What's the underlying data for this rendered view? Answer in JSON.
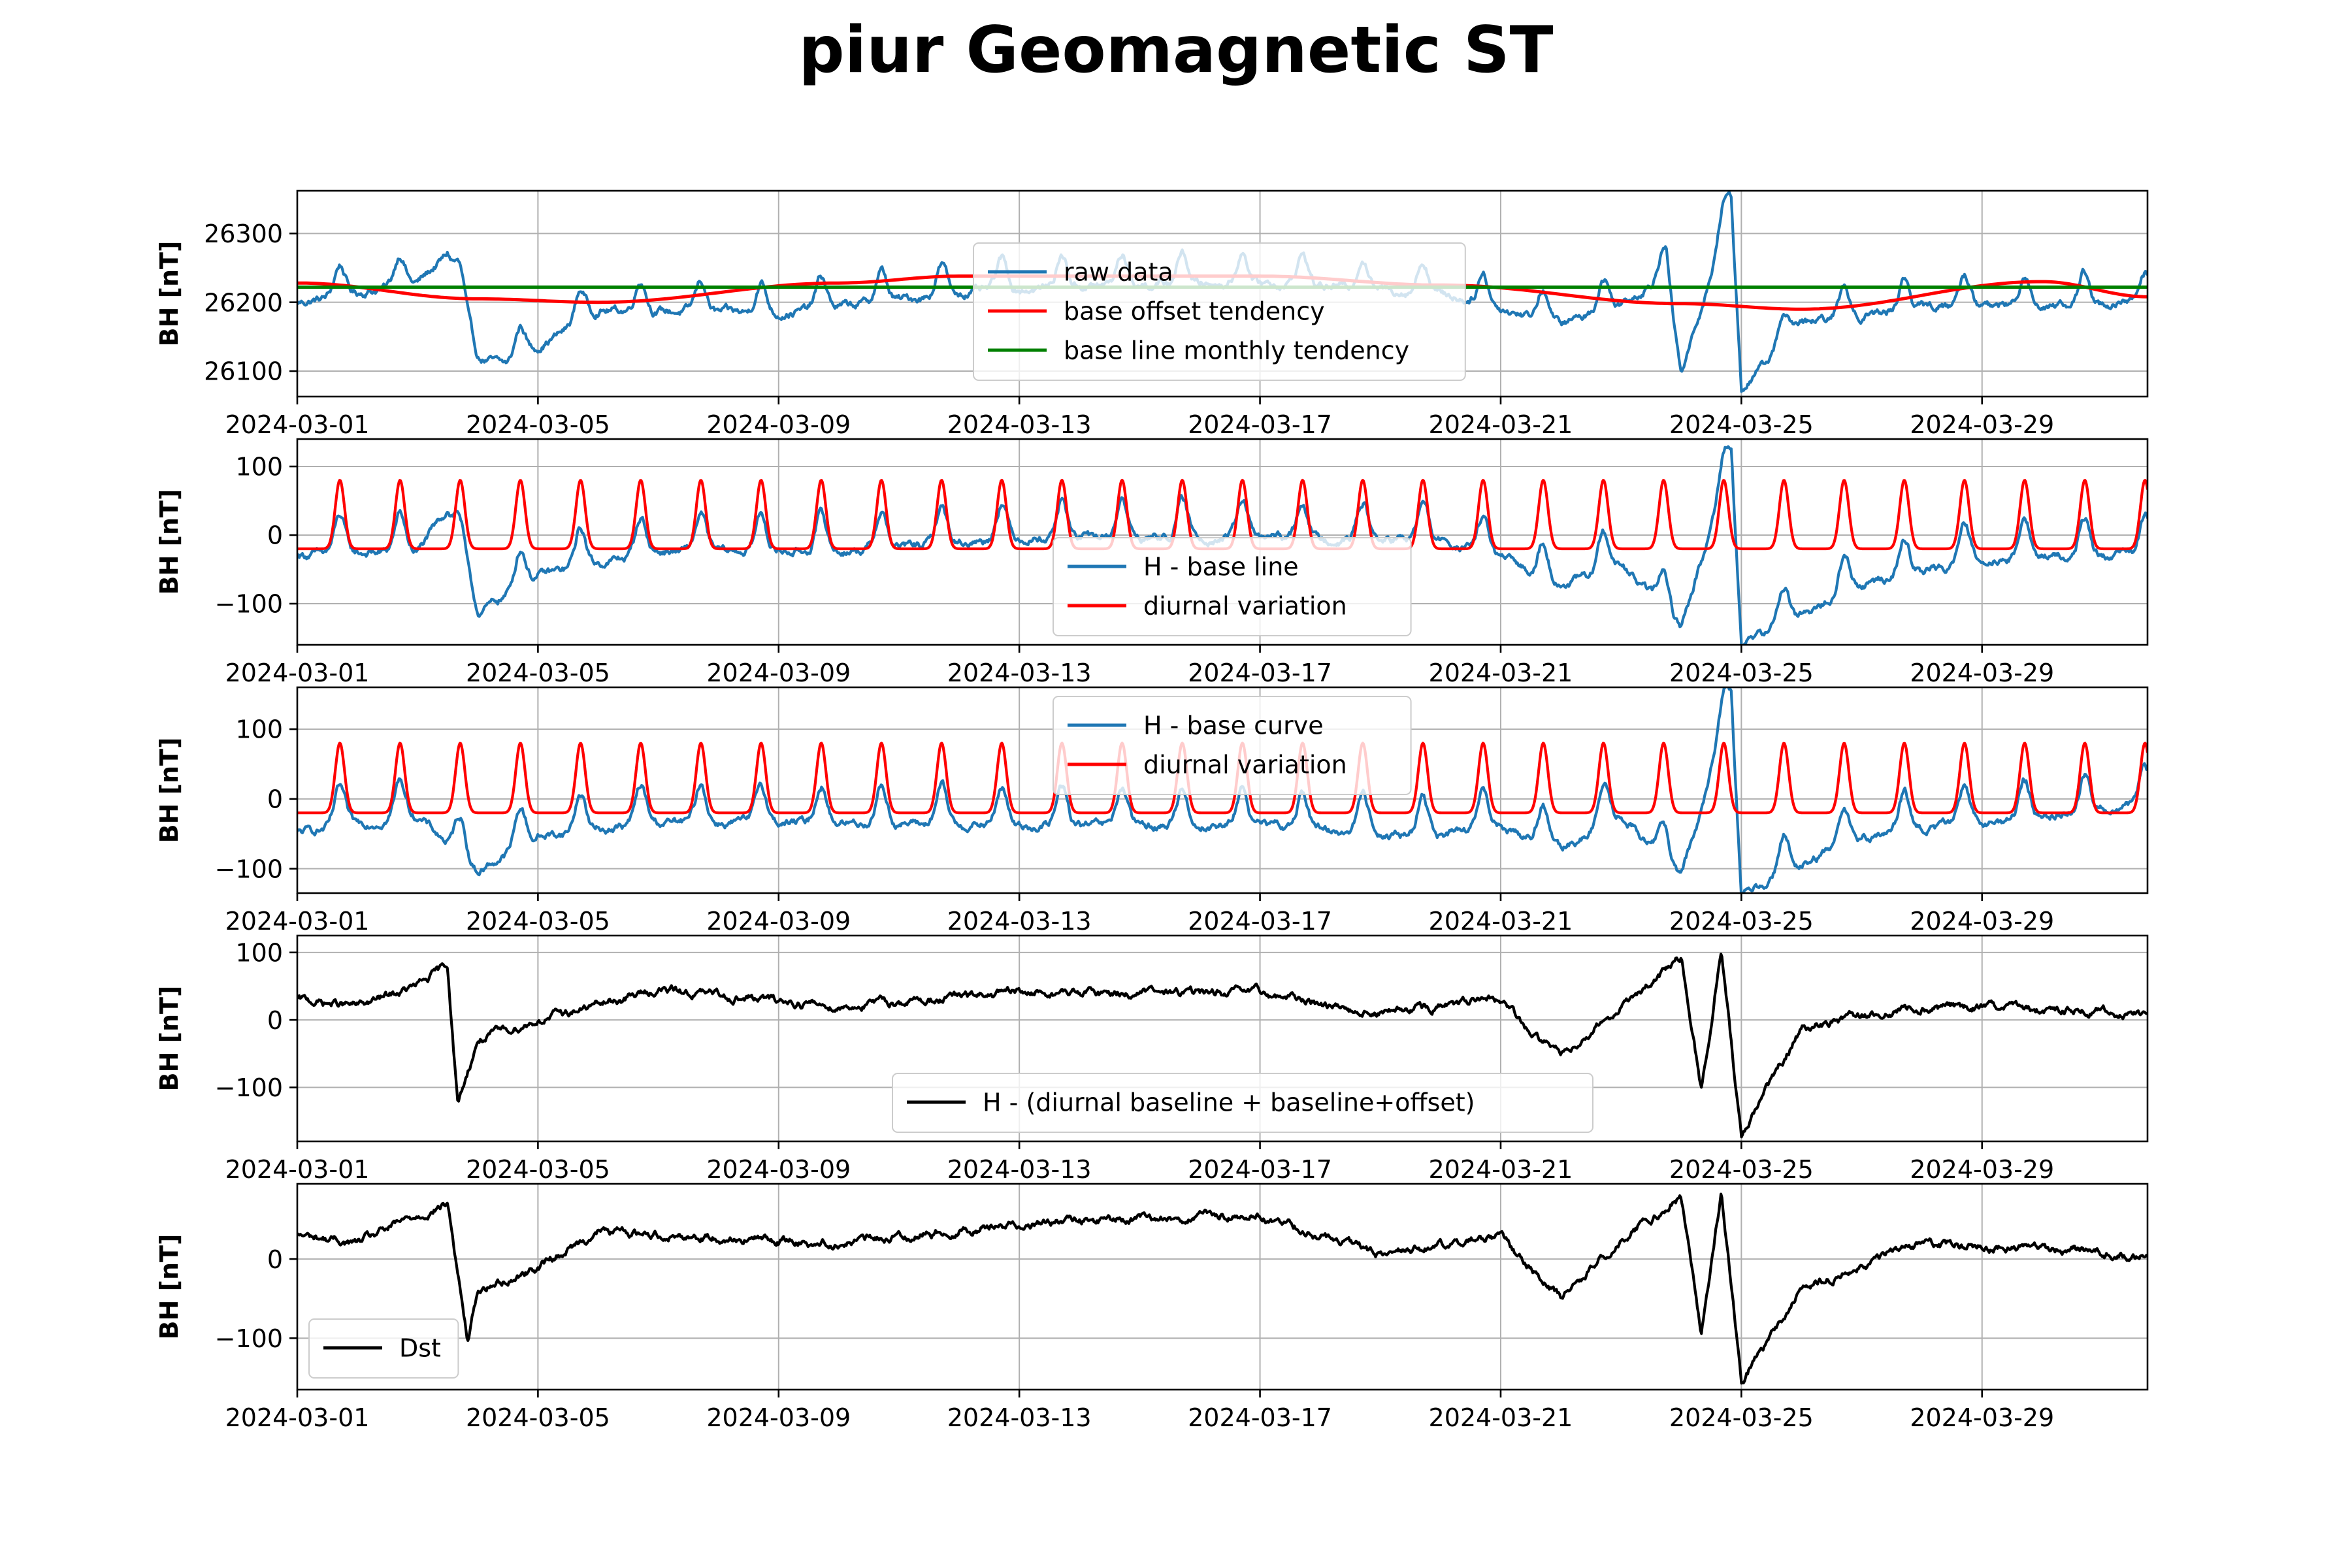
{
  "figure": {
    "title": "piur Geomagnetic ST"
  },
  "colors": {
    "blue": "#1f77b4",
    "red": "#ff0000",
    "green": "#008000",
    "black": "#000000",
    "grid": "#b0b0b0"
  },
  "shared_x": {
    "type": "date",
    "start": "2024-03-01",
    "end": "2024-03-31T18:00",
    "ticks": [
      "2024-03-01",
      "2024-03-05",
      "2024-03-09",
      "2024-03-13",
      "2024-03-17",
      "2024-03-21",
      "2024-03-25",
      "2024-03-29"
    ]
  },
  "chart_data": [
    {
      "type": "line",
      "ylabel": "BH [nT]",
      "ylim": [
        26063,
        26362
      ],
      "yticks": [
        26100,
        26200,
        26300
      ],
      "grid": true,
      "legend": {
        "placement": "center-right",
        "entries": [
          "raw data",
          "base offset tendency",
          "base line monthly tendency"
        ]
      },
      "series": [
        {
          "name": "raw data",
          "color": "#1f77b4",
          "x": [
            "2024-03-01",
            "2024-03-03",
            "2024-03-03T12:00",
            "2024-03-04",
            "2024-03-04T12:00",
            "2024-03-06",
            "2024-03-09",
            "2024-03-12",
            "2024-03-14",
            "2024-03-17",
            "2024-03-20",
            "2024-03-22",
            "2024-03-23",
            "2024-03-23T18:00",
            "2024-03-24",
            "2024-03-24T20:00",
            "2024-03-25",
            "2024-03-26",
            "2024-03-28",
            "2024-03-31T18:00"
          ],
          "y": [
            26210,
            26240,
            26280,
            26130,
            26120,
            26200,
            26195,
            26225,
            26235,
            26240,
            26225,
            26180,
            26210,
            26250,
            26105,
            26350,
            26085,
            26180,
            26205,
            26210
          ]
        },
        {
          "name": "base offset tendency",
          "color": "#ff0000",
          "x": [
            "2024-03-01",
            "2024-03-04",
            "2024-03-06",
            "2024-03-10",
            "2024-03-12",
            "2024-03-17",
            "2024-03-20",
            "2024-03-24",
            "2024-03-26",
            "2024-03-30",
            "2024-03-31T18:00"
          ],
          "y": [
            26228,
            26205,
            26200,
            26228,
            26238,
            26238,
            26225,
            26198,
            26190,
            26230,
            26208
          ]
        },
        {
          "name": "base line monthly tendency",
          "color": "#008000",
          "x": [
            "2024-03-01",
            "2024-03-31T18:00"
          ],
          "y": [
            26222,
            26222
          ]
        }
      ]
    },
    {
      "type": "line",
      "ylabel": "BH [nT]",
      "ylim": [
        -160,
        140
      ],
      "yticks": [
        -100,
        0,
        100
      ],
      "grid": true,
      "legend": {
        "placement": "lower-center",
        "entries": [
          "H - base line",
          "diurnal variation"
        ]
      },
      "series": [
        {
          "name": "H - base line",
          "color": "#1f77b4",
          "x": [
            "2024-03-01",
            "2024-03-03",
            "2024-03-03T12:00",
            "2024-03-04",
            "2024-03-05",
            "2024-03-07",
            "2024-03-10",
            "2024-03-13",
            "2024-03-17",
            "2024-03-20",
            "2024-03-21",
            "2024-03-22",
            "2024-03-23",
            "2024-03-24",
            "2024-03-24T20:00",
            "2024-03-25",
            "2024-03-27",
            "2024-03-29",
            "2024-03-31T18:00"
          ],
          "y": [
            -15,
            -10,
            50,
            -100,
            -45,
            -10,
            -10,
            10,
            10,
            5,
            -20,
            -60,
            -30,
            -120,
            120,
            -145,
            -60,
            -20,
            -15
          ]
        },
        {
          "name": "diurnal variation",
          "color": "#ff0000",
          "x": [
            "2024-03-01",
            "2024-03-31T18:00"
          ],
          "y": [
            -20,
            80
          ]
        }
      ]
    },
    {
      "type": "line",
      "ylabel": "BH [nT]",
      "ylim": [
        -135,
        160
      ],
      "yticks": [
        -100,
        0,
        100
      ],
      "grid": true,
      "legend": {
        "placement": "upper-center",
        "entries": [
          "H - base curve",
          "diurnal variation"
        ]
      },
      "series": [
        {
          "name": "H - base curve",
          "color": "#1f77b4",
          "x": [
            "2024-03-01",
            "2024-03-03",
            "2024-03-04",
            "2024-03-05",
            "2024-03-07",
            "2024-03-10",
            "2024-03-13",
            "2024-03-17",
            "2024-03-20",
            "2024-03-21",
            "2024-03-22",
            "2024-03-23",
            "2024-03-24",
            "2024-03-24T20:00",
            "2024-03-25",
            "2024-03-27",
            "2024-03-29",
            "2024-03-31T18:00"
          ],
          "y": [
            -35,
            -10,
            -90,
            -40,
            -20,
            -20,
            -25,
            -25,
            -40,
            -25,
            -60,
            -10,
            -100,
            150,
            -120,
            -40,
            -20,
            5
          ]
        },
        {
          "name": "diurnal variation",
          "color": "#ff0000",
          "x": [
            "2024-03-01",
            "2024-03-31T18:00"
          ],
          "y": [
            -20,
            80
          ]
        }
      ]
    },
    {
      "type": "line",
      "ylabel": "BH [nT]",
      "ylim": [
        -180,
        125
      ],
      "yticks": [
        -100,
        0,
        100
      ],
      "grid": true,
      "legend": {
        "placement": "lower-center",
        "entries": [
          "H - (diurnal baseline + baseline+offset)"
        ]
      },
      "series": [
        {
          "name": "H - (diurnal baseline + baseline+offset)",
          "color": "#000000",
          "x": [
            "2024-03-01",
            "2024-03-02",
            "2024-03-03",
            "2024-03-03T12:00",
            "2024-03-03T16:00",
            "2024-03-04",
            "2024-03-05",
            "2024-03-07",
            "2024-03-10",
            "2024-03-13",
            "2024-03-17",
            "2024-03-19",
            "2024-03-21",
            "2024-03-21T12:00",
            "2024-03-22",
            "2024-03-23",
            "2024-03-24",
            "2024-03-24T08:00",
            "2024-03-24T16:00",
            "2024-03-25",
            "2024-03-26",
            "2024-03-28",
            "2024-03-31T18:00"
          ],
          "y": [
            30,
            20,
            50,
            80,
            -125,
            -30,
            0,
            45,
            20,
            40,
            40,
            10,
            30,
            -20,
            -50,
            20,
            90,
            -105,
            105,
            -175,
            -10,
            20,
            10
          ]
        }
      ]
    },
    {
      "type": "line",
      "ylabel": "BH [nT]",
      "ylim": [
        -165,
        95
      ],
      "yticks": [
        -100,
        0
      ],
      "grid": true,
      "legend": {
        "placement": "lower-left",
        "entries": [
          "Dst"
        ]
      },
      "series": [
        {
          "name": "Dst",
          "color": "#000000",
          "x": [
            "2024-03-01",
            "2024-03-02",
            "2024-03-03",
            "2024-03-03T12:00",
            "2024-03-03T20:00",
            "2024-03-04",
            "2024-03-05",
            "2024-03-06",
            "2024-03-10",
            "2024-03-13",
            "2024-03-17",
            "2024-03-19",
            "2024-03-21",
            "2024-03-21T12:00",
            "2024-03-22",
            "2024-03-23",
            "2024-03-24",
            "2024-03-24T08:00",
            "2024-03-24T16:00",
            "2024-03-25",
            "2024-03-26",
            "2024-03-28",
            "2024-03-31T18:00"
          ],
          "y": [
            30,
            20,
            55,
            70,
            -105,
            -40,
            -10,
            35,
            20,
            45,
            55,
            5,
            30,
            -10,
            -50,
            25,
            80,
            -100,
            85,
            -155,
            -40,
            20,
            5
          ]
        }
      ]
    }
  ]
}
